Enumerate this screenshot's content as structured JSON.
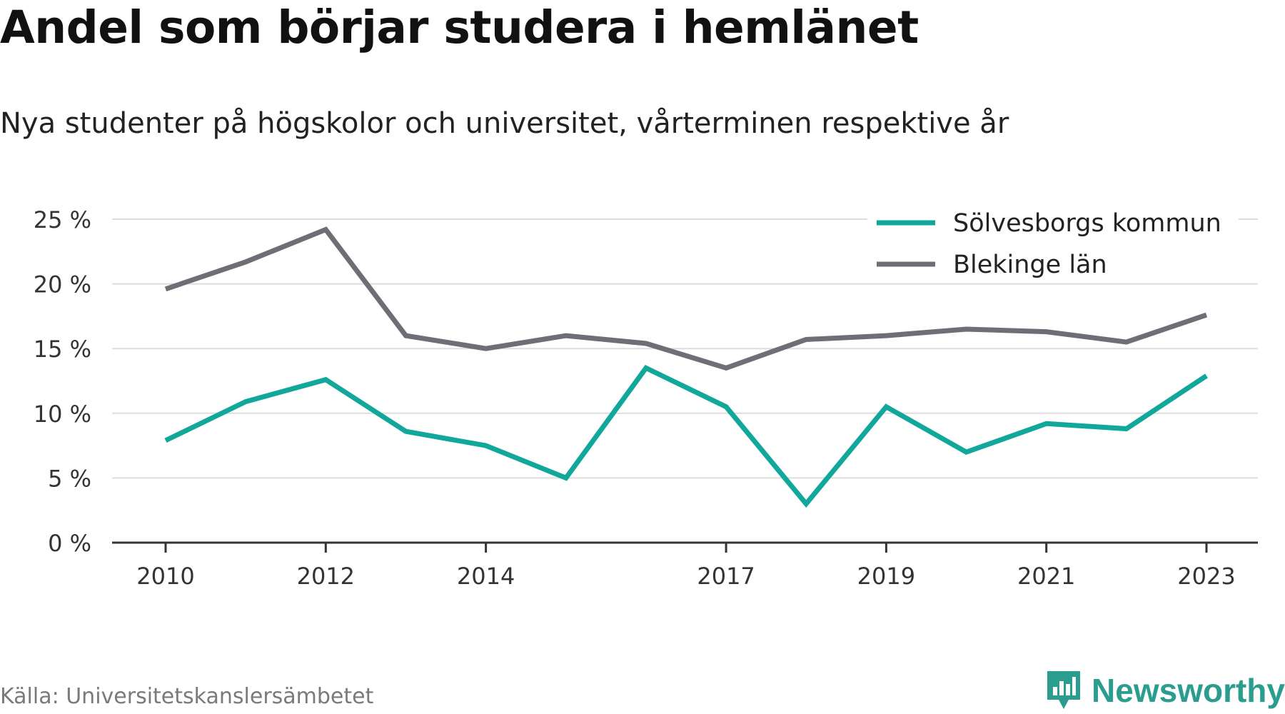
{
  "title": "Andel som börjar studera i hemlänet",
  "subtitle": "Nya studenter på högskolor och universitet, vårterminen respektive år",
  "source": "Källa: Universitetskanslersämbetet",
  "brand": {
    "name": "Newsworthy",
    "icon": "newsworthy-logo-icon",
    "color": "#2a9d8f"
  },
  "chart_data": {
    "type": "line",
    "x": [
      2010,
      2011,
      2012,
      2013,
      2014,
      2015,
      2016,
      2017,
      2018,
      2019,
      2020,
      2021,
      2022,
      2023
    ],
    "xticks": [
      "2010",
      "2012",
      "2014",
      "2017",
      "2019",
      "2021",
      "2023"
    ],
    "yticks": [
      "0 %",
      "5 %",
      "10 %",
      "15 %",
      "20 %",
      "25 %"
    ],
    "ylim": [
      0,
      25
    ],
    "grid": true,
    "legend_position": "top-right",
    "series": [
      {
        "name": "Sölvesborgs kommun",
        "color": "#11a79b",
        "values": [
          7.9,
          10.9,
          12.6,
          8.6,
          7.5,
          5.0,
          13.5,
          10.5,
          3.0,
          10.5,
          7.0,
          9.2,
          8.8,
          12.9
        ]
      },
      {
        "name": "Blekinge län",
        "color": "#6f6e76",
        "values": [
          19.6,
          21.7,
          24.2,
          16.0,
          15.0,
          16.0,
          15.4,
          13.5,
          15.7,
          16.0,
          16.5,
          16.3,
          15.5,
          17.6
        ]
      }
    ]
  }
}
